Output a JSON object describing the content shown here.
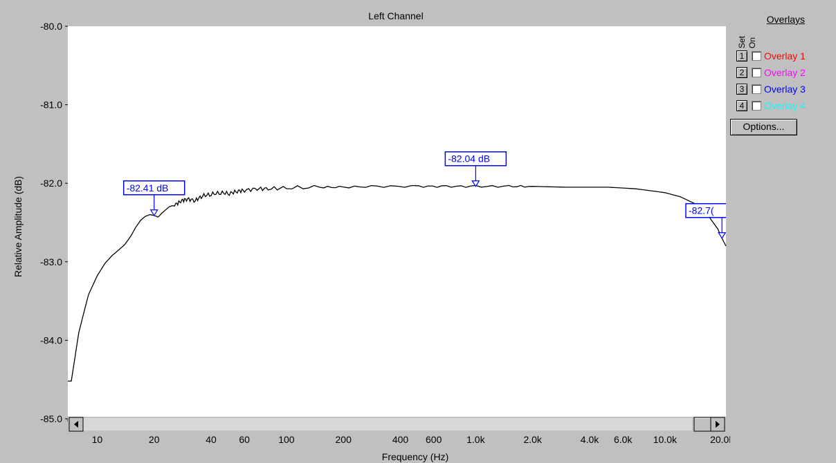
{
  "chart_data": {
    "type": "line",
    "title": "Left Channel",
    "xlabel": "Frequency (Hz)",
    "ylabel": "Relative Amplitude (dB)",
    "x_scale": "log",
    "xlim": [
      7,
      21000
    ],
    "ylim": [
      -85.0,
      -80.0
    ],
    "grid": false,
    "y_ticks": [
      "-80.0",
      "-81.0",
      "-82.0",
      "-83.0",
      "-84.0",
      "-85.0"
    ],
    "x_tick_labels": [
      {
        "value": 10,
        "label": "10"
      },
      {
        "value": 20,
        "label": "20"
      },
      {
        "value": 40,
        "label": "40"
      },
      {
        "value": 60,
        "label": "60"
      },
      {
        "value": 100,
        "label": "100"
      },
      {
        "value": 200,
        "label": "200"
      },
      {
        "value": 400,
        "label": "400"
      },
      {
        "value": 600,
        "label": "600"
      },
      {
        "value": 1000,
        "label": "1.0k"
      },
      {
        "value": 2000,
        "label": "2.0k"
      },
      {
        "value": 4000,
        "label": "4.0k"
      },
      {
        "value": 6000,
        "label": "6.0k"
      },
      {
        "value": 10000,
        "label": "10.0k"
      },
      {
        "value": 20000,
        "label": "20.0k"
      }
    ],
    "series": [
      {
        "color": "#000000",
        "x": [
          7,
          7.3,
          7.6,
          8,
          8.5,
          9,
          10,
          11,
          12,
          13,
          14,
          15,
          16,
          17,
          18,
          19,
          20,
          21,
          22,
          24,
          26,
          28,
          30,
          33,
          36,
          40,
          45,
          50,
          55,
          60,
          70,
          80,
          100,
          150,
          200,
          300,
          500,
          700,
          1000,
          1500,
          2000,
          3000,
          5000,
          7000,
          10000,
          12000,
          15000,
          17000,
          19000,
          20000,
          21000
        ],
        "y": [
          -84.52,
          -84.52,
          -84.25,
          -83.9,
          -83.65,
          -83.42,
          -83.18,
          -83.02,
          -82.92,
          -82.85,
          -82.78,
          -82.68,
          -82.56,
          -82.47,
          -82.42,
          -82.4,
          -82.41,
          -82.43,
          -82.38,
          -82.3,
          -82.27,
          -82.22,
          -82.2,
          -82.22,
          -82.16,
          -82.14,
          -82.12,
          -82.13,
          -82.1,
          -82.09,
          -82.07,
          -82.07,
          -82.06,
          -82.05,
          -82.05,
          -82.04,
          -82.04,
          -82.04,
          -82.04,
          -82.04,
          -82.04,
          -82.05,
          -82.05,
          -82.07,
          -82.12,
          -82.17,
          -82.28,
          -82.42,
          -82.58,
          -82.7,
          -82.8
        ]
      }
    ],
    "markers": [
      {
        "x": 20,
        "y": -82.41,
        "label": "-82.41 dB"
      },
      {
        "x": 1000,
        "y": -82.04,
        "label": "-82.04 dB"
      },
      {
        "x": 20000,
        "y": -82.7,
        "label": "-82.7("
      }
    ],
    "background": "#ffffff",
    "frame_color": "#c0c0c0",
    "marker_color": "#0000ff"
  },
  "overlays": {
    "title": "Overlays",
    "set_header": "Set",
    "on_header": "On",
    "items": [
      {
        "set": "1",
        "label": "Overlay 1",
        "color": "#ff0000",
        "checked": false
      },
      {
        "set": "2",
        "label": "Overlay 2",
        "color": "#ff00ff",
        "checked": false
      },
      {
        "set": "3",
        "label": "Overlay 3",
        "color": "#0000ff",
        "checked": false
      },
      {
        "set": "4",
        "label": "Overlay 4",
        "color": "#00ffff",
        "checked": false
      }
    ],
    "options_label": "Options..."
  }
}
